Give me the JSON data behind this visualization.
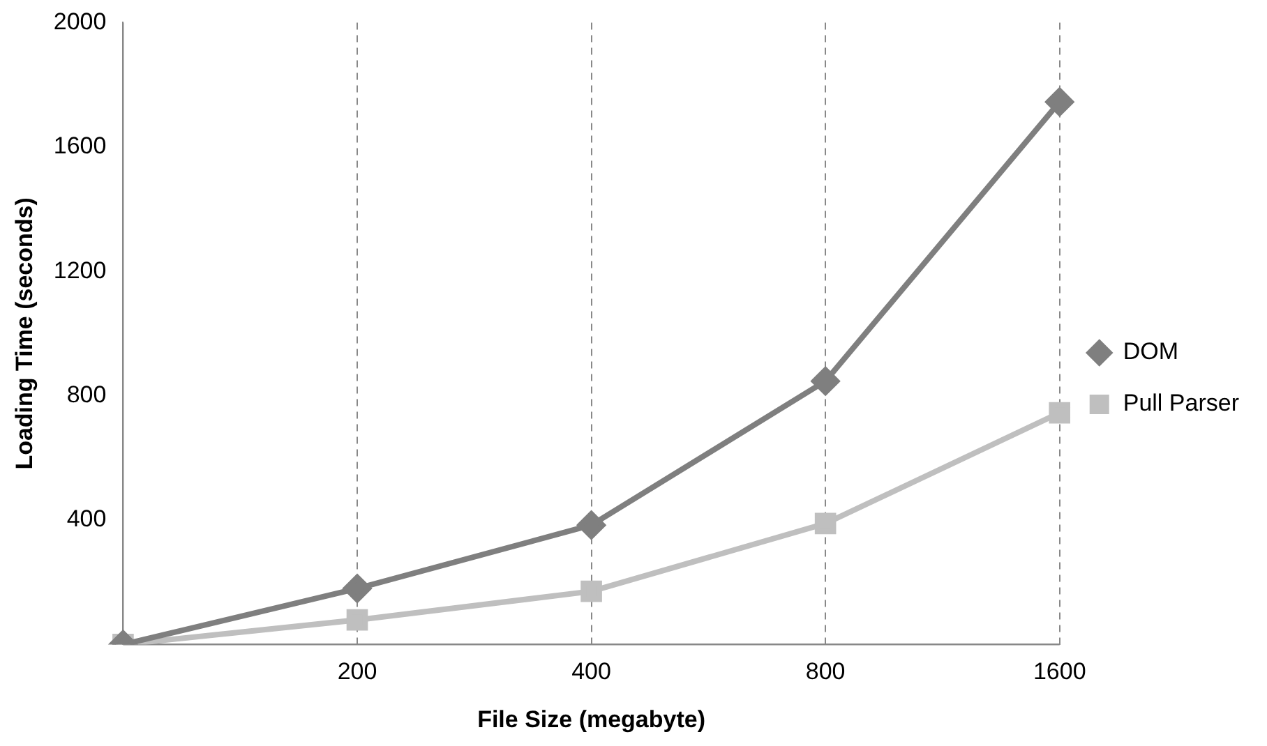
{
  "chart_data": {
    "type": "line",
    "xlabel": "File Size (megabyte)",
    "ylabel": "Loading Time (seconds)",
    "categories": [
      null,
      "200",
      "400",
      "800",
      "1600"
    ],
    "series": [
      {
        "name": "DOM",
        "color": "#7f7f7f",
        "marker": "diamond",
        "values": [
          0,
          180,
          384,
          847,
          1745
        ]
      },
      {
        "name": "Pull Parser",
        "color": "#bfbfbf",
        "marker": "square",
        "values": [
          0,
          79,
          171,
          389,
          745
        ]
      }
    ],
    "ylim": [
      0,
      2000
    ],
    "yticks": [
      400,
      800,
      1200,
      1600,
      2000
    ],
    "grid": "x",
    "legend": "right",
    "line_style": "solid"
  }
}
